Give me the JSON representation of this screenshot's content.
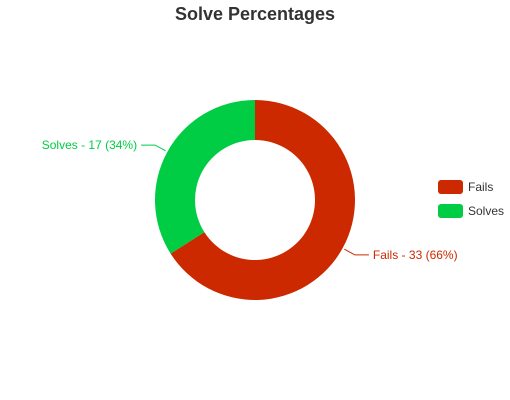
{
  "chart_data": {
    "type": "pie",
    "title": "Solve Percentages",
    "donut": true,
    "slices": [
      {
        "name": "Fails",
        "value": 33,
        "percent": 66,
        "color": "#cc2900",
        "label": "Fails - 33 (66%)"
      },
      {
        "name": "Solves",
        "value": 17,
        "percent": 34,
        "color": "#00cc44",
        "label": "Solves - 17 (34%)"
      }
    ],
    "legend": {
      "placement": "right",
      "entries": [
        "Fails",
        "Solves"
      ]
    }
  }
}
